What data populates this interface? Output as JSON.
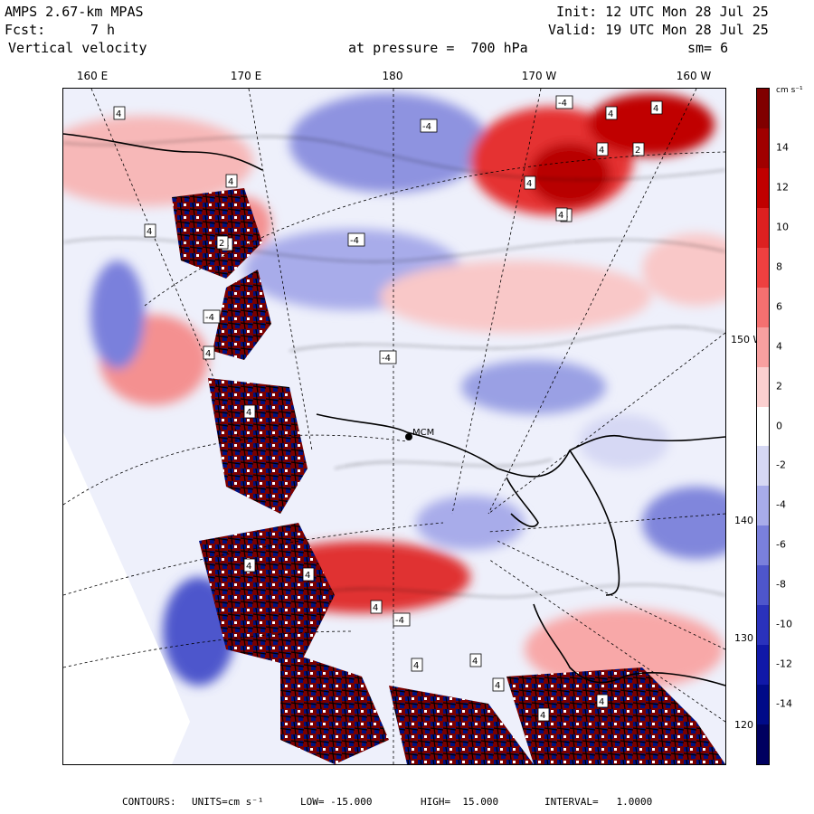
{
  "header": {
    "model": "AMPS 2.67-km MPAS",
    "init": "Init: 12 UTC Mon 28 Jul 25",
    "fcst_label": "Fcst:",
    "fcst_value": "7 h",
    "valid": "Valid: 19 UTC Mon 28 Jul 25",
    "field": "Vertical velocity",
    "level": "at pressure =  700 hPa",
    "smoothing": "sm= 6"
  },
  "longitude_labels": [
    "160 E",
    "170 E",
    "180",
    "170 W",
    "160 W"
  ],
  "latitude_labels": [
    "150 W",
    "140 W",
    "130 W",
    "120 W"
  ],
  "station_label": "MCM",
  "colorbar": {
    "units": "cm s⁻¹",
    "ticks": [
      "14",
      "12",
      "10",
      "8",
      "6",
      "4",
      "2",
      "0",
      "-2",
      "-4",
      "-6",
      "-8",
      "-10",
      "-12",
      "-14"
    ],
    "colors": [
      "#800000",
      "#a00000",
      "#c00000",
      "#dd2020",
      "#ee4040",
      "#f57070",
      "#f8a0a0",
      "#fbd0d0",
      "#ffffff",
      "#d6d8f4",
      "#a8acea",
      "#7a80dc",
      "#4e56cc",
      "#2a32bc",
      "#1018a8",
      "#000a88",
      "#000060"
    ]
  },
  "footer": {
    "contours_label": "CONTOURS:",
    "units": "UNITS=cm s⁻¹",
    "low": "LOW= -15.000",
    "high": "HIGH=  15.000",
    "interval": "INTERVAL=   1.0000"
  },
  "contour_box_labels": [
    "4",
    "4",
    "-4",
    "4",
    "4",
    "-4",
    "4",
    "2",
    "4",
    "-4",
    "4",
    "4",
    "-4",
    "4",
    "4",
    "2",
    "4",
    "4",
    "-4",
    "4",
    "4",
    "4",
    "-4",
    "4",
    "4",
    "4",
    "4",
    "4"
  ]
}
